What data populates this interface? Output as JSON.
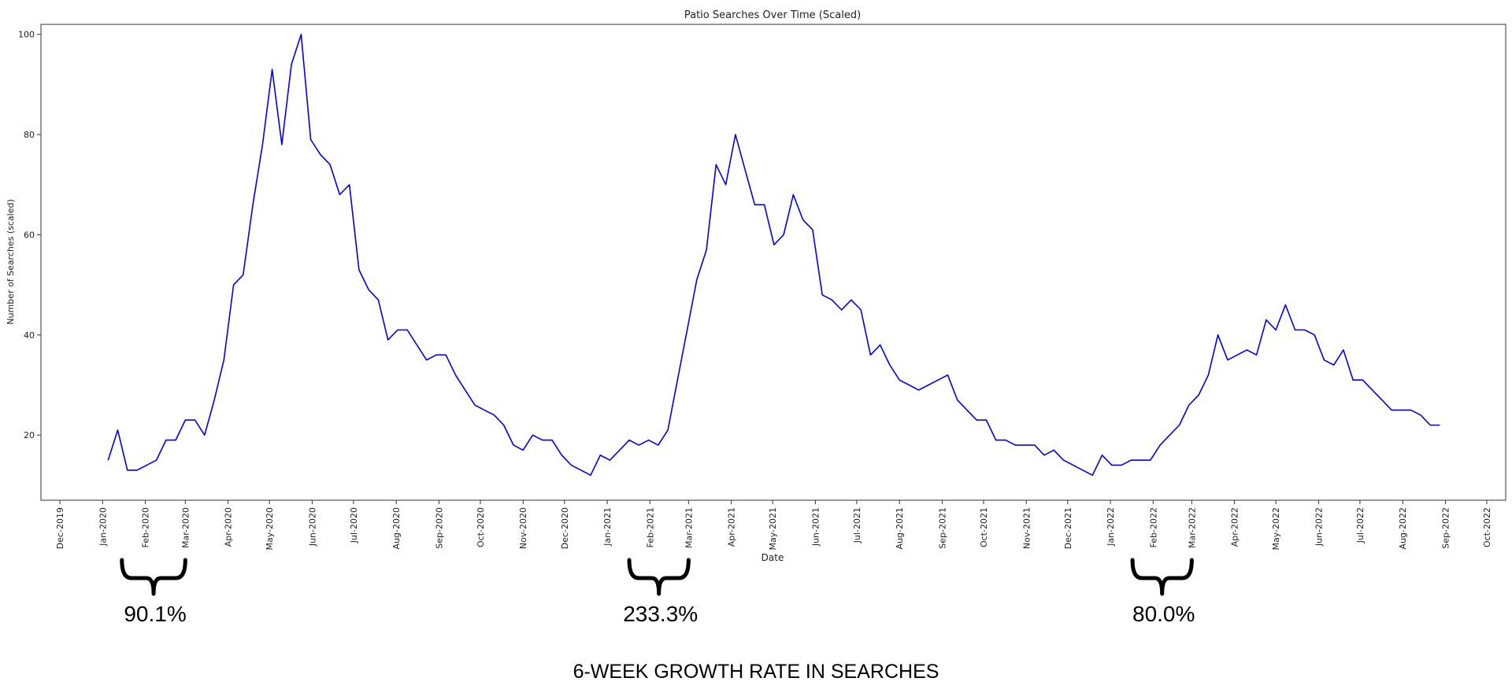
{
  "chart_data": {
    "type": "line",
    "title": "Patio Searches Over Time (Scaled)",
    "xlabel": "Date",
    "ylabel": "Number of Searches (scaled)",
    "x_tick_labels": [
      "Dec-2019",
      "Jan-2020",
      "Feb-2020",
      "Mar-2020",
      "Apr-2020",
      "May-2020",
      "Jun-2020",
      "Jul-2020",
      "Aug-2020",
      "Sep-2020",
      "Oct-2020",
      "Nov-2020",
      "Dec-2020",
      "Jan-2021",
      "Feb-2021",
      "Mar-2021",
      "Apr-2021",
      "May-2021",
      "Jun-2021",
      "Jul-2021",
      "Aug-2021",
      "Sep-2021",
      "Oct-2021",
      "Nov-2021",
      "Dec-2021",
      "Jan-2022",
      "Feb-2022",
      "Mar-2022",
      "Apr-2022",
      "May-2022",
      "Jun-2022",
      "Jul-2022",
      "Aug-2022",
      "Sep-2022",
      "Oct-2022"
    ],
    "y_ticks": [
      20,
      40,
      60,
      80,
      100
    ],
    "ylim": [
      7,
      102
    ],
    "series": [
      {
        "color": "#0000ee",
        "points": [
          [
            "2020-01-05",
            15
          ],
          [
            "2020-01-12",
            21
          ],
          [
            "2020-01-19",
            13
          ],
          [
            "2020-01-26",
            13
          ],
          [
            "2020-02-02",
            14
          ],
          [
            "2020-02-09",
            15
          ],
          [
            "2020-02-16",
            19
          ],
          [
            "2020-02-23",
            19
          ],
          [
            "2020-03-01",
            23
          ],
          [
            "2020-03-08",
            23
          ],
          [
            "2020-03-15",
            20
          ],
          [
            "2020-03-22",
            27
          ],
          [
            "2020-03-29",
            35
          ],
          [
            "2020-04-05",
            50
          ],
          [
            "2020-04-12",
            52
          ],
          [
            "2020-04-19",
            66
          ],
          [
            "2020-04-26",
            78
          ],
          [
            "2020-05-03",
            93
          ],
          [
            "2020-05-10",
            78
          ],
          [
            "2020-05-17",
            94
          ],
          [
            "2020-05-24",
            100
          ],
          [
            "2020-05-31",
            79
          ],
          [
            "2020-06-07",
            76
          ],
          [
            "2020-06-14",
            74
          ],
          [
            "2020-06-21",
            68
          ],
          [
            "2020-06-28",
            70
          ],
          [
            "2020-07-05",
            53
          ],
          [
            "2020-07-12",
            49
          ],
          [
            "2020-07-19",
            47
          ],
          [
            "2020-07-26",
            39
          ],
          [
            "2020-08-02",
            41
          ],
          [
            "2020-08-09",
            41
          ],
          [
            "2020-08-16",
            38
          ],
          [
            "2020-08-23",
            35
          ],
          [
            "2020-08-30",
            36
          ],
          [
            "2020-09-06",
            36
          ],
          [
            "2020-09-13",
            32
          ],
          [
            "2020-09-20",
            29
          ],
          [
            "2020-09-27",
            26
          ],
          [
            "2020-10-04",
            25
          ],
          [
            "2020-10-11",
            24
          ],
          [
            "2020-10-18",
            22
          ],
          [
            "2020-10-25",
            18
          ],
          [
            "2020-11-01",
            17
          ],
          [
            "2020-11-08",
            20
          ],
          [
            "2020-11-15",
            19
          ],
          [
            "2020-11-22",
            19
          ],
          [
            "2020-11-29",
            16
          ],
          [
            "2020-12-06",
            14
          ],
          [
            "2020-12-13",
            13
          ],
          [
            "2020-12-20",
            12
          ],
          [
            "2020-12-27",
            16
          ],
          [
            "2021-01-03",
            15
          ],
          [
            "2021-01-10",
            17
          ],
          [
            "2021-01-17",
            19
          ],
          [
            "2021-01-24",
            18
          ],
          [
            "2021-01-31",
            19
          ],
          [
            "2021-02-07",
            18
          ],
          [
            "2021-02-14",
            21
          ],
          [
            "2021-02-21",
            31
          ],
          [
            "2021-02-28",
            41
          ],
          [
            "2021-03-07",
            51
          ],
          [
            "2021-03-14",
            57
          ],
          [
            "2021-03-21",
            74
          ],
          [
            "2021-03-28",
            70
          ],
          [
            "2021-04-04",
            80
          ],
          [
            "2021-04-11",
            73
          ],
          [
            "2021-04-18",
            66
          ],
          [
            "2021-04-25",
            66
          ],
          [
            "2021-05-02",
            58
          ],
          [
            "2021-05-09",
            60
          ],
          [
            "2021-05-16",
            68
          ],
          [
            "2021-05-23",
            63
          ],
          [
            "2021-05-30",
            61
          ],
          [
            "2021-06-06",
            48
          ],
          [
            "2021-06-13",
            47
          ],
          [
            "2021-06-20",
            45
          ],
          [
            "2021-06-27",
            47
          ],
          [
            "2021-07-04",
            45
          ],
          [
            "2021-07-11",
            36
          ],
          [
            "2021-07-18",
            38
          ],
          [
            "2021-07-25",
            34
          ],
          [
            "2021-08-01",
            31
          ],
          [
            "2021-08-08",
            30
          ],
          [
            "2021-08-15",
            29
          ],
          [
            "2021-08-22",
            30
          ],
          [
            "2021-08-29",
            31
          ],
          [
            "2021-09-05",
            32
          ],
          [
            "2021-09-12",
            27
          ],
          [
            "2021-09-19",
            25
          ],
          [
            "2021-09-26",
            23
          ],
          [
            "2021-10-03",
            23
          ],
          [
            "2021-10-10",
            19
          ],
          [
            "2021-10-17",
            19
          ],
          [
            "2021-10-24",
            18
          ],
          [
            "2021-10-31",
            18
          ],
          [
            "2021-11-07",
            18
          ],
          [
            "2021-11-14",
            16
          ],
          [
            "2021-11-21",
            17
          ],
          [
            "2021-11-28",
            15
          ],
          [
            "2021-12-05",
            14
          ],
          [
            "2021-12-12",
            13
          ],
          [
            "2021-12-19",
            12
          ],
          [
            "2021-12-26",
            16
          ],
          [
            "2022-01-02",
            14
          ],
          [
            "2022-01-09",
            14
          ],
          [
            "2022-01-16",
            15
          ],
          [
            "2022-01-23",
            15
          ],
          [
            "2022-01-30",
            15
          ],
          [
            "2022-02-06",
            18
          ],
          [
            "2022-02-13",
            20
          ],
          [
            "2022-02-20",
            22
          ],
          [
            "2022-02-27",
            26
          ],
          [
            "2022-03-06",
            28
          ],
          [
            "2022-03-13",
            32
          ],
          [
            "2022-03-20",
            40
          ],
          [
            "2022-03-27",
            35
          ],
          [
            "2022-04-03",
            36
          ],
          [
            "2022-04-10",
            37
          ],
          [
            "2022-04-17",
            36
          ],
          [
            "2022-04-24",
            43
          ],
          [
            "2022-05-01",
            41
          ],
          [
            "2022-05-08",
            46
          ],
          [
            "2022-05-15",
            41
          ],
          [
            "2022-05-22",
            41
          ],
          [
            "2022-05-29",
            40
          ],
          [
            "2022-06-05",
            35
          ],
          [
            "2022-06-12",
            34
          ],
          [
            "2022-06-19",
            37
          ],
          [
            "2022-06-26",
            31
          ],
          [
            "2022-07-03",
            31
          ],
          [
            "2022-07-10",
            29
          ],
          [
            "2022-07-17",
            27
          ],
          [
            "2022-07-24",
            25
          ],
          [
            "2022-07-31",
            25
          ],
          [
            "2022-08-07",
            25
          ],
          [
            "2022-08-14",
            24
          ],
          [
            "2022-08-21",
            22
          ],
          [
            "2022-08-28",
            22
          ]
        ]
      }
    ],
    "annotations": [
      {
        "label": "90.1%",
        "start": "2020-01-15",
        "end": "2020-03-01"
      },
      {
        "label": "233.3%",
        "start": "2021-01-17",
        "end": "2021-03-01"
      },
      {
        "label": "80.0%",
        "start": "2022-01-17",
        "end": "2022-03-01"
      }
    ],
    "grid": false
  },
  "caption": "6-WEEK GROWTH RATE IN SEARCHES"
}
